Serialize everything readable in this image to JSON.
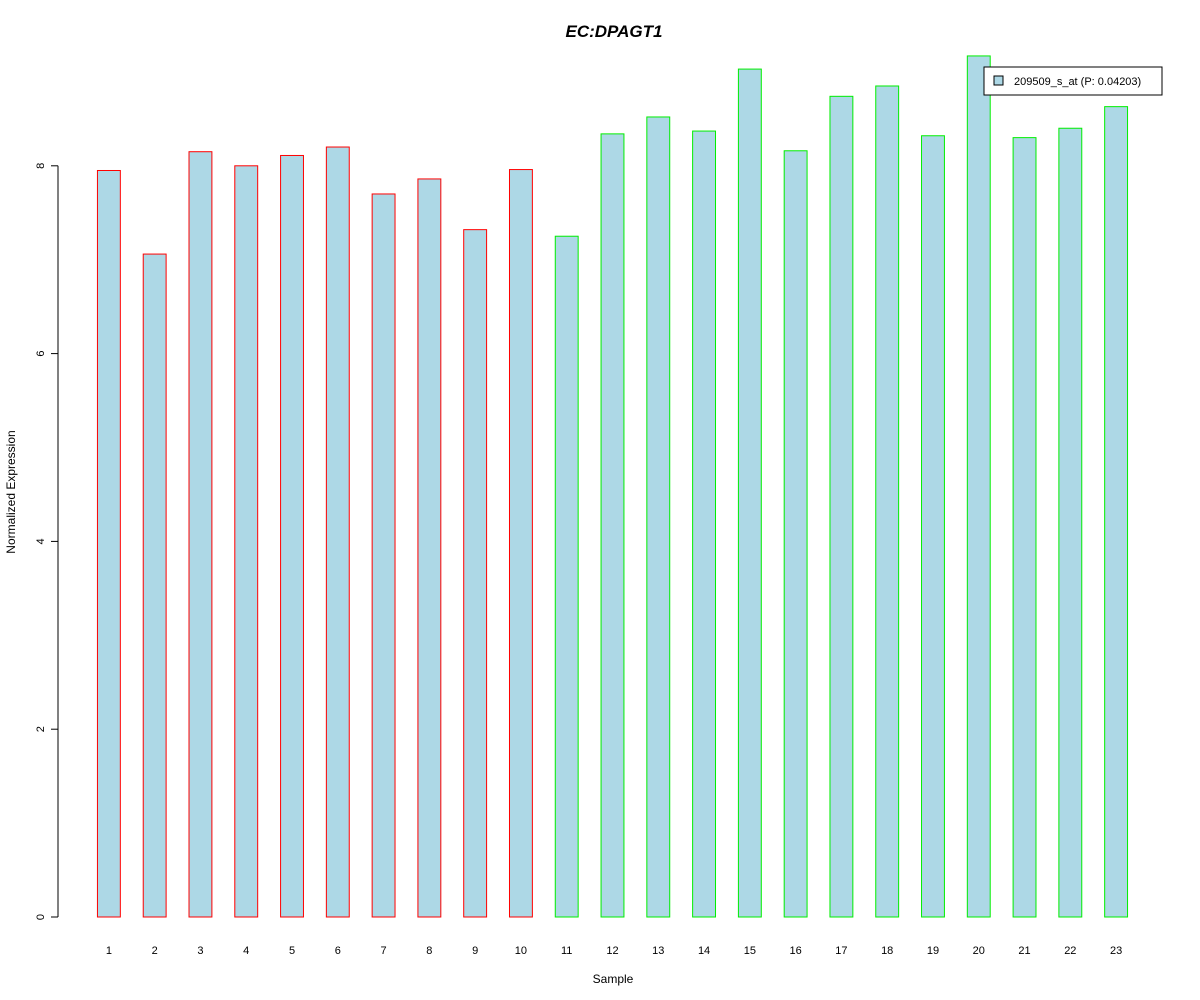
{
  "chart_data": {
    "type": "bar",
    "title": "EC:DPAGT1",
    "xlabel": "Sample",
    "ylabel": "Normalized Expression",
    "categories": [
      "1",
      "2",
      "3",
      "4",
      "5",
      "6",
      "7",
      "8",
      "9",
      "10",
      "11",
      "12",
      "13",
      "14",
      "15",
      "16",
      "17",
      "18",
      "19",
      "20",
      "21",
      "22",
      "23"
    ],
    "series": [
      {
        "name": "209509_s_at (P: 0.04203)",
        "values": [
          7.95,
          7.06,
          8.15,
          8.0,
          8.11,
          8.2,
          7.7,
          7.86,
          7.32,
          7.96,
          7.25,
          8.34,
          8.52,
          8.37,
          9.03,
          8.16,
          8.74,
          8.85,
          8.32,
          9.17,
          8.3,
          8.4,
          8.63
        ]
      }
    ],
    "group_borders": [
      "#ff0000",
      "#ff0000",
      "#ff0000",
      "#ff0000",
      "#ff0000",
      "#ff0000",
      "#ff0000",
      "#ff0000",
      "#ff0000",
      "#ff0000",
      "#00ee00",
      "#00ee00",
      "#00ee00",
      "#00ee00",
      "#00ee00",
      "#00ee00",
      "#00ee00",
      "#00ee00",
      "#00ee00",
      "#00ee00",
      "#00ee00",
      "#00ee00",
      "#00ee00"
    ],
    "ylim": [
      0,
      9.2
    ],
    "yticks": [
      0,
      2,
      4,
      6,
      8
    ],
    "grid": false,
    "legend_position": "top-right",
    "colors": {
      "bar_fill": "#add8e6",
      "title": "#0000cd",
      "axis": "#000000"
    }
  }
}
